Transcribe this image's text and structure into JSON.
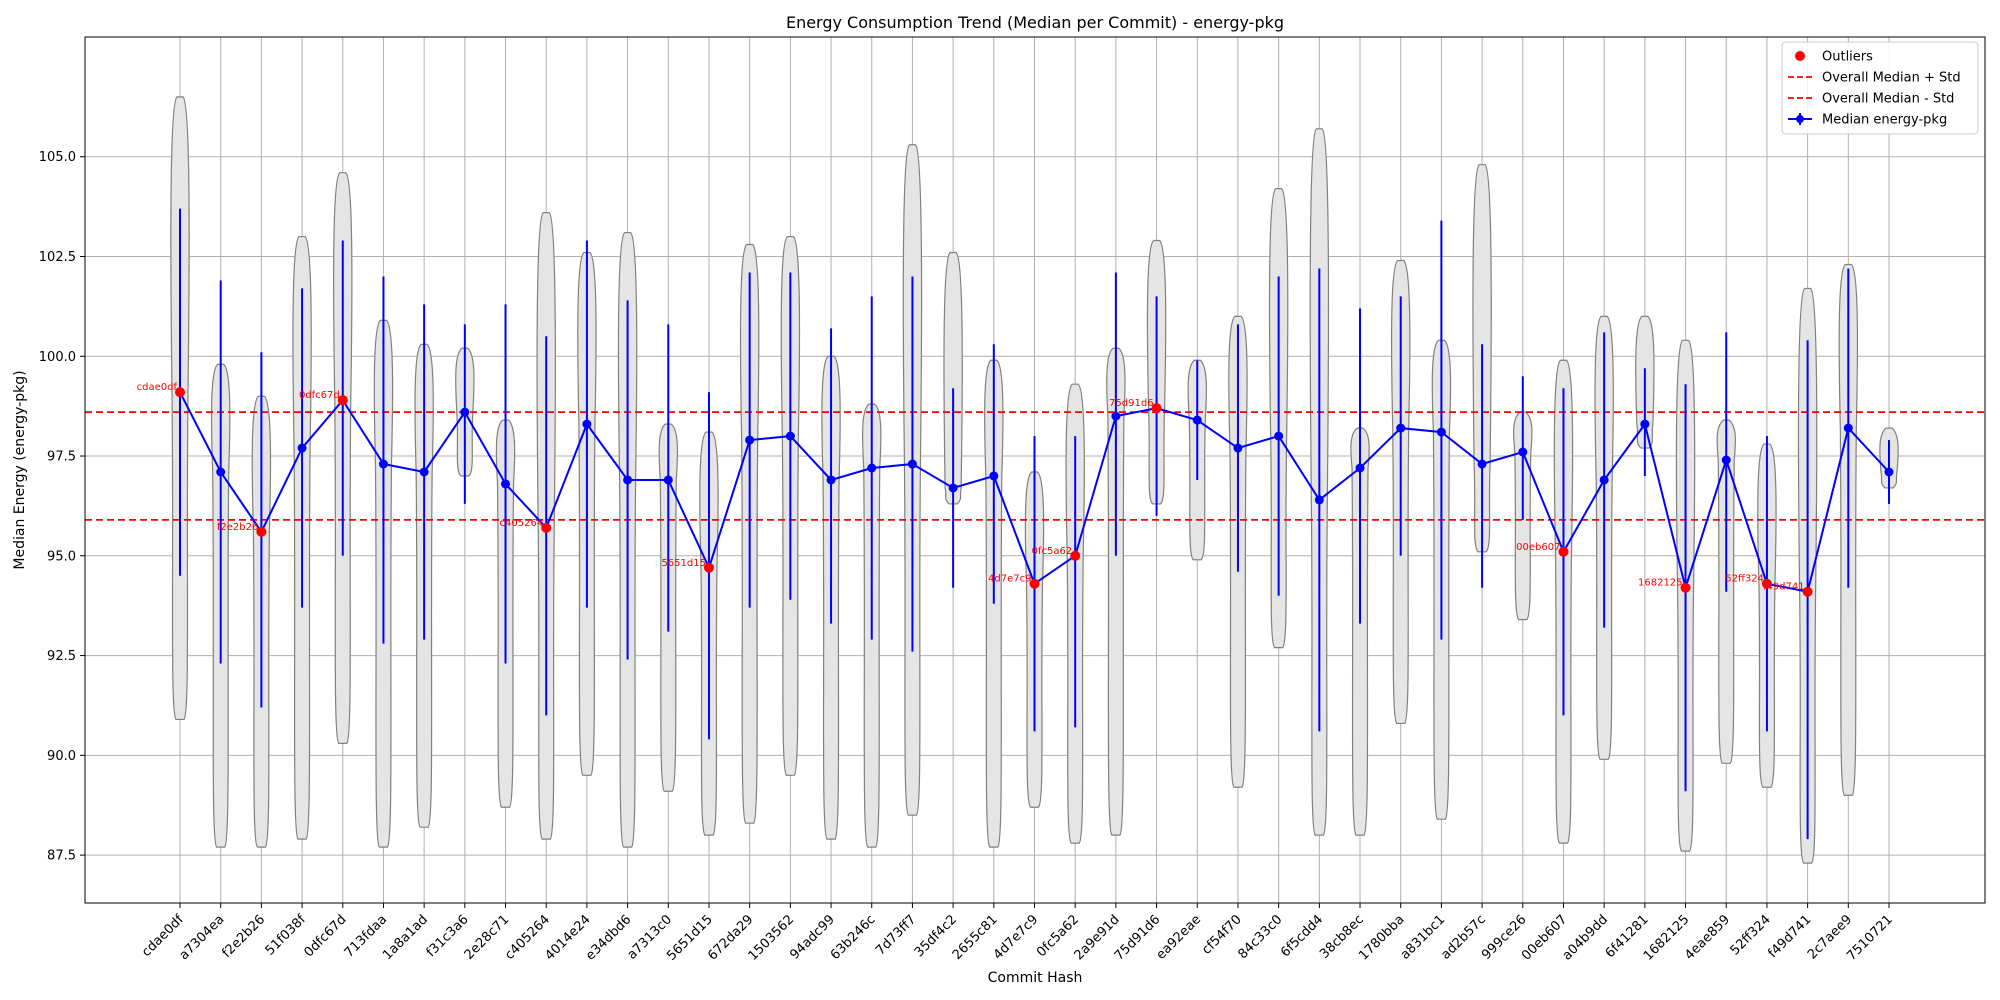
{
  "chart_data": {
    "type": "line",
    "title": "Energy Consumption Trend (Median per Commit) - energy-pkg",
    "xlabel": "Commit Hash",
    "ylabel": "Median Energy (energy-pkg)",
    "ylim": [
      86.3,
      108.0
    ],
    "yticks": [
      87.5,
      90.0,
      92.5,
      95.0,
      97.5,
      100.0,
      102.5,
      105.0
    ],
    "ytick_labels": [
      "87.5",
      "90.0",
      "92.5",
      "95.0",
      "97.5",
      "100.0",
      "102.5",
      "105.0"
    ],
    "grid": true,
    "legend_position": "top-right",
    "colors": {
      "median": "#0000ff",
      "outlier": "#ff0000",
      "std": "#ff0000",
      "violin_fill": "#e5e5e5",
      "violin_edge": "#808080"
    },
    "categories": [
      "cdae0df",
      "a7304ea",
      "f2e2b26",
      "51f038f",
      "0dfc67d",
      "713fdaa",
      "1a8a1ad",
      "f31c3a6",
      "2e28c71",
      "c405264",
      "4014e24",
      "e34dbd6",
      "a7313c0",
      "5651d15",
      "672da29",
      "1503562",
      "94adc99",
      "63b246c",
      "7d73ff7",
      "35df4c2",
      "2655c81",
      "4d7e7c9",
      "0fc5a62",
      "2a9e91d",
      "75d91d6",
      "ea92eae",
      "cf54f70",
      "84c33c0",
      "6f5cdd4",
      "38cb8ec",
      "1780bba",
      "a831bc1",
      "ad2b57c",
      "999ce26",
      "00eb607",
      "a04b9dd",
      "6f41281",
      "1682125",
      "4eae859",
      "52ff324",
      "f49d741",
      "2c7aee9",
      "7510721"
    ],
    "series": [
      {
        "name": "Median energy-pkg",
        "values": [
          99.1,
          97.1,
          95.6,
          97.7,
          98.9,
          97.3,
          97.1,
          98.6,
          96.8,
          95.7,
          98.3,
          96.9,
          96.9,
          94.7,
          97.9,
          98.0,
          96.9,
          97.2,
          97.3,
          96.7,
          97.0,
          94.3,
          95.0,
          98.5,
          98.7,
          98.4,
          97.7,
          98.0,
          96.4,
          97.2,
          98.2,
          98.1,
          97.3,
          97.6,
          95.1,
          96.9,
          98.3,
          94.2,
          97.4,
          94.3,
          94.1,
          98.2,
          97.1
        ],
        "err_low": [
          94.5,
          92.3,
          91.2,
          93.7,
          95.0,
          92.8,
          92.9,
          96.3,
          92.3,
          91.0,
          93.7,
          92.4,
          93.1,
          90.4,
          93.7,
          93.9,
          93.3,
          92.9,
          92.6,
          94.2,
          93.8,
          90.6,
          90.7,
          95.0,
          96.0,
          96.9,
          94.6,
          94.0,
          90.6,
          93.3,
          95.0,
          92.9,
          94.2,
          95.9,
          91.0,
          93.2,
          97.0,
          89.1,
          94.1,
          90.6,
          87.9,
          94.2,
          96.3
        ],
        "err_high": [
          103.7,
          101.9,
          100.1,
          101.7,
          102.9,
          102.0,
          101.3,
          100.8,
          101.3,
          100.5,
          102.9,
          101.4,
          100.8,
          99.1,
          102.1,
          102.1,
          100.7,
          101.5,
          102.0,
          99.2,
          100.3,
          98.0,
          98.0,
          102.1,
          101.5,
          99.9,
          100.8,
          102.0,
          102.2,
          101.2,
          101.5,
          103.4,
          100.3,
          99.5,
          99.2,
          100.6,
          99.7,
          99.3,
          100.6,
          98.0,
          100.4,
          102.2,
          97.9
        ]
      }
    ],
    "violins": [
      {
        "min": 90.9,
        "max": 106.5
      },
      {
        "min": 87.7,
        "max": 99.8
      },
      {
        "min": 87.7,
        "max": 99.0
      },
      {
        "min": 87.9,
        "max": 103.0
      },
      {
        "min": 90.3,
        "max": 104.6
      },
      {
        "min": 87.7,
        "max": 100.9
      },
      {
        "min": 88.2,
        "max": 100.3
      },
      {
        "min": 97.0,
        "max": 100.2
      },
      {
        "min": 88.7,
        "max": 98.4
      },
      {
        "min": 87.9,
        "max": 103.6
      },
      {
        "min": 89.5,
        "max": 102.6
      },
      {
        "min": 87.7,
        "max": 103.1
      },
      {
        "min": 89.1,
        "max": 98.3
      },
      {
        "min": 88.0,
        "max": 98.1
      },
      {
        "min": 88.3,
        "max": 102.8
      },
      {
        "min": 89.5,
        "max": 103.0
      },
      {
        "min": 87.9,
        "max": 100.0
      },
      {
        "min": 87.7,
        "max": 98.8
      },
      {
        "min": 88.5,
        "max": 105.3
      },
      {
        "min": 96.3,
        "max": 102.6
      },
      {
        "min": 87.7,
        "max": 99.9
      },
      {
        "min": 88.7,
        "max": 97.1
      },
      {
        "min": 87.8,
        "max": 99.3
      },
      {
        "min": 88.0,
        "max": 100.2
      },
      {
        "min": 96.3,
        "max": 102.9
      },
      {
        "min": 94.9,
        "max": 99.9
      },
      {
        "min": 89.2,
        "max": 101.0
      },
      {
        "min": 92.7,
        "max": 104.2
      },
      {
        "min": 88.0,
        "max": 105.7
      },
      {
        "min": 88.0,
        "max": 98.2
      },
      {
        "min": 90.8,
        "max": 102.4
      },
      {
        "min": 88.4,
        "max": 100.4
      },
      {
        "min": 95.1,
        "max": 104.8
      },
      {
        "min": 93.4,
        "max": 98.6
      },
      {
        "min": 87.8,
        "max": 99.9
      },
      {
        "min": 89.9,
        "max": 101.0
      },
      {
        "min": 97.7,
        "max": 101.0
      },
      {
        "min": 87.6,
        "max": 100.4
      },
      {
        "min": 89.8,
        "max": 98.4
      },
      {
        "min": 89.2,
        "max": 97.8
      },
      {
        "min": 87.3,
        "max": 101.7
      },
      {
        "min": 89.0,
        "max": 102.3
      },
      {
        "min": 96.7,
        "max": 98.2
      }
    ],
    "outliers": [
      {
        "index": 0,
        "value": 99.1,
        "label": "cdae0df"
      },
      {
        "index": 2,
        "value": 95.6,
        "label": "f2e2b26"
      },
      {
        "index": 4,
        "value": 98.9,
        "label": "0dfc67d"
      },
      {
        "index": 9,
        "value": 95.7,
        "label": "c405264"
      },
      {
        "index": 13,
        "value": 94.7,
        "label": "5651d15"
      },
      {
        "index": 21,
        "value": 94.3,
        "label": "4d7e7c9"
      },
      {
        "index": 22,
        "value": 95.0,
        "label": "0fc5a62"
      },
      {
        "index": 24,
        "value": 98.7,
        "label": "75d91d6"
      },
      {
        "index": 34,
        "value": 95.1,
        "label": "00eb607"
      },
      {
        "index": 37,
        "value": 94.2,
        "label": "1682125"
      },
      {
        "index": 39,
        "value": 94.3,
        "label": "52ff324"
      },
      {
        "index": 40,
        "value": 94.1,
        "label": "f49d741"
      }
    ],
    "std_upper": 98.6,
    "std_lower": 95.9,
    "legend": [
      {
        "label": "Outliers",
        "kind": "dot"
      },
      {
        "label": "Overall Median + Std",
        "kind": "dashed"
      },
      {
        "label": "Overall Median - Std",
        "kind": "dashed"
      },
      {
        "label": "Median energy-pkg",
        "kind": "errline"
      }
    ]
  }
}
